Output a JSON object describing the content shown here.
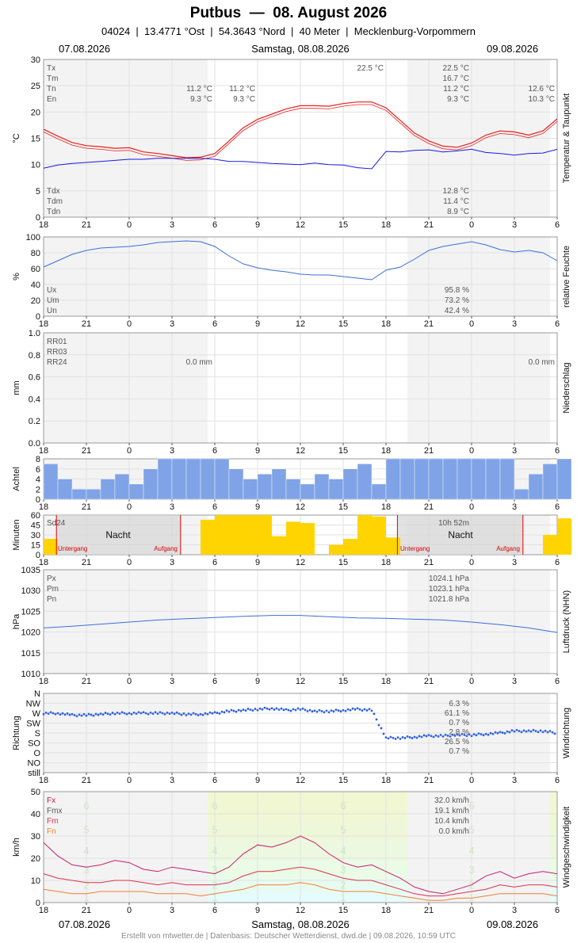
{
  "header": {
    "title": "Putbus  —  08. August 2026",
    "subtitle": "04024  |  13.4771 °Ost  |  54.3643 °Nord  |  40 Meter  |  Mecklenburg-Vorpommern",
    "date_left": "07.08.2026",
    "date_center": "Samstag, 08.08.2026",
    "date_right": "09.08.2026"
  },
  "footer": {
    "credit": "Erstellt von mtwetter.de | Datenbasis: Deutscher Wetterdienst, dwd.de | 09.08.2026, 10:59 UTC",
    "date_left": "07.08.2026",
    "date_center": "Samstag, 08.08.2026",
    "date_right": "09.08.2026"
  },
  "colors": {
    "temperature": "#e8201e",
    "dewpoint": "#1a1adf",
    "humidity": "#3a6fd8",
    "clouds": "#7fa3e6",
    "sun": "#ffd400",
    "pressure": "#3a6fd8",
    "wind_dir": "#2f5fe0",
    "gust": "#c51e6e",
    "wind_mean": "#d9324e",
    "wind_min": "#f08030",
    "night": "#d6d6d6",
    "grid": "#e2e2e2"
  },
  "x_ticks": [
    "18",
    "21",
    "0",
    "3",
    "6",
    "9",
    "12",
    "15",
    "18",
    "21",
    "0",
    "3",
    "6"
  ],
  "chart_data": [
    {
      "type": "line",
      "title": "Temperatur & Taupunkt",
      "ylabel": "°C",
      "ylim": [
        0,
        30
      ],
      "yticks": [
        "0",
        "5",
        "10",
        "15",
        "20",
        "25",
        "30"
      ],
      "x_unit": "hours since 07.08.2026 18:00",
      "series": [
        {
          "name": "Temperatur",
          "x": [
            0,
            1,
            2,
            3,
            4,
            5,
            6,
            7,
            8,
            9,
            10,
            11,
            12,
            13,
            14,
            15,
            16,
            17,
            18,
            19,
            20,
            21,
            22,
            23,
            24,
            25,
            26,
            27,
            28,
            29,
            30,
            31,
            32,
            33,
            34,
            35,
            36
          ],
          "values": [
            16.7,
            15.4,
            14.2,
            13.6,
            13.4,
            13.1,
            13.2,
            12.4,
            12.1,
            11.7,
            11.3,
            11.4,
            12.1,
            14.5,
            17.0,
            18.6,
            19.6,
            20.6,
            21.2,
            21.2,
            21.1,
            21.6,
            21.9,
            21.9,
            20.8,
            18.4,
            16.0,
            14.5,
            13.5,
            13.3,
            14.1,
            15.6,
            16.4,
            16.2,
            15.6,
            16.4,
            18.7
          ]
        },
        {
          "name": "Taupunkt",
          "x": [
            0,
            1,
            2,
            3,
            4,
            5,
            6,
            7,
            8,
            9,
            10,
            11,
            12,
            13,
            14,
            15,
            16,
            17,
            18,
            19,
            20,
            21,
            22,
            23,
            24,
            25,
            26,
            27,
            28,
            29,
            30,
            31,
            32,
            33,
            34,
            35,
            36
          ],
          "values": [
            9.3,
            9.9,
            10.2,
            10.4,
            10.6,
            10.8,
            11.0,
            11.0,
            11.2,
            11.2,
            11.2,
            11.2,
            11.0,
            10.6,
            10.6,
            10.4,
            10.2,
            10.1,
            10.0,
            10.3,
            10.0,
            9.9,
            9.4,
            9.2,
            12.5,
            12.4,
            12.7,
            12.8,
            12.4,
            12.6,
            12.9,
            12.3,
            12.1,
            11.8,
            12.1,
            12.2,
            12.9
          ]
        }
      ],
      "annotations": [
        {
          "label": "Tx",
          "value": "22.5 °C"
        },
        {
          "label": "Tm",
          "value": "16.7 °C"
        },
        {
          "label": "Tn",
          "value": "11.2 °C"
        },
        {
          "label": "En",
          "value": "9.3 °C"
        },
        {
          "label": "Tdx",
          "value": "12.8 °C"
        },
        {
          "label": "Tdm",
          "value": "11.4 °C"
        },
        {
          "label": "Tdn",
          "value": "8.9 °C"
        }
      ],
      "extra_labels": {
        "tx_peak": "22.5 °C",
        "tn_prev": "11.2 °C",
        "en_prev": "9.3 °C",
        "tn_prev2": "11.2 °C",
        "en_prev2": "9.3 °C",
        "tn_next": "12.6 °C",
        "en_next": "10.3 °C"
      }
    },
    {
      "type": "line",
      "title": "relative Feuchte",
      "ylabel": "%",
      "ylim": [
        0,
        100
      ],
      "yticks": [
        "0",
        "20",
        "40",
        "60",
        "80",
        "100"
      ],
      "series": [
        {
          "name": "Feuchte",
          "x": [
            0,
            1,
            2,
            3,
            4,
            5,
            6,
            7,
            8,
            9,
            10,
            11,
            12,
            13,
            14,
            15,
            16,
            17,
            18,
            19,
            20,
            21,
            22,
            23,
            24,
            25,
            26,
            27,
            28,
            29,
            30,
            31,
            32,
            33,
            34,
            35,
            36
          ],
          "values": [
            62,
            70,
            78,
            83,
            86,
            87,
            88,
            90,
            93,
            94,
            95,
            94,
            88,
            76,
            66,
            61,
            58,
            56,
            53,
            52,
            52,
            50,
            48,
            46,
            58,
            62,
            72,
            83,
            88,
            91,
            94,
            90,
            84,
            81,
            83,
            80,
            70
          ]
        }
      ],
      "annotations": [
        {
          "label": "Ux",
          "value": "95.8 %"
        },
        {
          "label": "Um",
          "value": "73.2 %"
        },
        {
          "label": "Un",
          "value": "42.4 %"
        }
      ]
    },
    {
      "type": "bar",
      "title": "Niederschlag",
      "ylabel": "mm",
      "ylim": [
        0,
        1.0
      ],
      "yticks": [
        "0.0",
        "0.2",
        "0.4",
        "0.6",
        "0.8",
        "1.0"
      ],
      "values": [],
      "annotations": [
        {
          "label": "RR01"
        },
        {
          "label": "RR03"
        },
        {
          "label": "RR24",
          "value": "0.0 mm",
          "value2": "0.0 mm"
        }
      ]
    },
    {
      "type": "bar",
      "title": "Wolken",
      "ylabel": "Achtel",
      "ylim": [
        0,
        8
      ],
      "yticks": [
        "0",
        "2",
        "4",
        "6",
        "8"
      ],
      "x_unit": "hours since 07.08.2026 18:00",
      "x": [
        0,
        1,
        2,
        3,
        4,
        5,
        6,
        7,
        8,
        9,
        10,
        11,
        12,
        13,
        14,
        15,
        16,
        17,
        18,
        19,
        20,
        21,
        22,
        23,
        24,
        25,
        26,
        27,
        28,
        29,
        30,
        31,
        32,
        33,
        34,
        35,
        36
      ],
      "values": [
        7,
        4,
        2,
        2,
        4,
        5,
        3,
        6,
        8,
        8,
        8,
        8,
        8,
        6,
        4,
        5,
        6,
        4,
        3,
        5,
        4,
        6,
        7,
        3,
        8,
        8,
        8,
        8,
        8,
        8,
        8,
        8,
        8,
        2,
        5,
        7,
        8
      ]
    },
    {
      "type": "bar",
      "title": "Sonne",
      "ylabel": "Minuten",
      "ylim": [
        0,
        60
      ],
      "yticks": [
        "0",
        "15",
        "30",
        "45",
        "60"
      ],
      "x_unit": "hours since 07.08.2026 18:00",
      "x": [
        0,
        1,
        2,
        3,
        4,
        5,
        6,
        7,
        8,
        9,
        10,
        11,
        12,
        13,
        14,
        15,
        16,
        17,
        18,
        19,
        20,
        21,
        22,
        23,
        24,
        25,
        26,
        27,
        28,
        29,
        30,
        31,
        32,
        33,
        34,
        35,
        36
      ],
      "values": [
        24,
        0,
        0,
        0,
        0,
        0,
        0,
        0,
        0,
        0,
        0,
        53,
        60,
        60,
        60,
        60,
        28,
        50,
        48,
        0,
        15,
        24,
        60,
        58,
        26,
        0,
        0,
        0,
        0,
        0,
        0,
        0,
        0,
        0,
        0,
        30,
        55
      ],
      "annotations": [
        {
          "label": "Sd24"
        },
        {
          "label": "10h 52m"
        },
        {
          "label": "Nacht"
        },
        {
          "label": "Untergang"
        },
        {
          "label": "Aufgang"
        }
      ]
    },
    {
      "type": "line",
      "title": "Luftdruck (NHN)",
      "ylabel": "hPa",
      "ylim": [
        1010,
        1035
      ],
      "yticks": [
        "1010",
        "1015",
        "1020",
        "1025",
        "1030",
        "1035"
      ],
      "series": [
        {
          "name": "Luftdruck",
          "x": [
            0,
            2,
            4,
            6,
            8,
            10,
            12,
            14,
            16,
            18,
            20,
            22,
            24,
            26,
            28,
            30,
            32,
            34,
            36
          ],
          "values": [
            1021.0,
            1021.4,
            1021.9,
            1022.4,
            1022.9,
            1023.2,
            1023.5,
            1023.8,
            1024.0,
            1024.0,
            1023.7,
            1023.4,
            1023.3,
            1023.1,
            1022.9,
            1022.4,
            1021.8,
            1021.0,
            1019.9
          ]
        }
      ],
      "annotations": [
        {
          "label": "Px",
          "value": "1024.1 hPa"
        },
        {
          "label": "Pm",
          "value": "1023.1 hPa"
        },
        {
          "label": "Pn",
          "value": "1021.8 hPa"
        }
      ]
    },
    {
      "type": "scatter",
      "title": "Windrichtung",
      "ylabel": "Richtung",
      "yticks": [
        "still",
        "NO",
        "O",
        "SO",
        "S",
        "SW",
        "W",
        "NW",
        "N"
      ],
      "ylim": [
        0,
        8
      ],
      "x_unit": "hours since 07.08.2026 18:00",
      "series": [
        {
          "name": "Windrichtung",
          "x": [
            0,
            1,
            2,
            3,
            4,
            5,
            6,
            7,
            8,
            9,
            10,
            11,
            12,
            13,
            14,
            15,
            16,
            17,
            18,
            19,
            20,
            21,
            22,
            23,
            24,
            25,
            26,
            27,
            28,
            29,
            30,
            31,
            32,
            33,
            34,
            35,
            36
          ],
          "values": [
            6,
            6,
            5.8,
            5.8,
            5.9,
            6,
            6,
            6,
            6,
            6,
            5.9,
            5.9,
            6,
            6.2,
            6.3,
            6.4,
            6.5,
            6.3,
            6.4,
            6.2,
            6.2,
            6.3,
            6.4,
            6.3,
            3.5,
            3.5,
            3.6,
            3.7,
            3.7,
            3.8,
            3.8,
            3.9,
            4,
            4.2,
            4.2,
            4.2,
            4
          ]
        }
      ],
      "annotations": [
        {
          "label": "N",
          "value": "6.3 %"
        },
        {
          "label": "NW",
          "value": "61.1 %"
        },
        {
          "label": "W",
          "value": "0.7 %"
        },
        {
          "label": "SW",
          "value": "2.8 %"
        },
        {
          "label": "S",
          "value": "26.5 %"
        },
        {
          "label": "SO",
          "value": "0.7 %"
        }
      ]
    },
    {
      "type": "line",
      "title": "Windgeschwindigkeit",
      "ylabel": "km/h",
      "ylim": [
        0,
        50
      ],
      "yticks": [
        "0",
        "10",
        "20",
        "30",
        "40",
        "50"
      ],
      "x_unit": "hours since 07.08.2026 18:00",
      "series": [
        {
          "name": "Fx",
          "x": [
            0,
            1,
            2,
            3,
            4,
            5,
            6,
            7,
            8,
            9,
            10,
            11,
            12,
            13,
            14,
            15,
            16,
            17,
            18,
            19,
            20,
            21,
            22,
            23,
            24,
            25,
            26,
            27,
            28,
            29,
            30,
            31,
            32,
            33,
            34,
            35,
            36
          ],
          "values": [
            27,
            21,
            17,
            16,
            17,
            19,
            18,
            15,
            14,
            16,
            15,
            14,
            13,
            16,
            22,
            26,
            25,
            27,
            30,
            27,
            22,
            18,
            16,
            17,
            14,
            11,
            7,
            5,
            4,
            6,
            8,
            12,
            14,
            11,
            13,
            14,
            13
          ]
        },
        {
          "name": "Fm",
          "x": [
            0,
            1,
            2,
            3,
            4,
            5,
            6,
            7,
            8,
            9,
            10,
            11,
            12,
            13,
            14,
            15,
            16,
            17,
            18,
            19,
            20,
            21,
            22,
            23,
            24,
            25,
            26,
            27,
            28,
            29,
            30,
            31,
            32,
            33,
            34,
            35,
            36
          ],
          "values": [
            13,
            11,
            10,
            9,
            9,
            10,
            10,
            9,
            8,
            9,
            8,
            8,
            8,
            9,
            12,
            14,
            14,
            15,
            16,
            15,
            13,
            11,
            10,
            10,
            8,
            6,
            4,
            3,
            3,
            4,
            5,
            6,
            8,
            7,
            8,
            8,
            7
          ]
        },
        {
          "name": "Fn",
          "x": [
            0,
            1,
            2,
            3,
            4,
            5,
            6,
            7,
            8,
            9,
            10,
            11,
            12,
            13,
            14,
            15,
            16,
            17,
            18,
            19,
            20,
            21,
            22,
            23,
            24,
            25,
            26,
            27,
            28,
            29,
            30,
            31,
            32,
            33,
            34,
            35,
            36
          ],
          "values": [
            6,
            5,
            4,
            4,
            5,
            5,
            5,
            5,
            4,
            4,
            4,
            3,
            4,
            5,
            6,
            8,
            8,
            8,
            9,
            8,
            6,
            5,
            5,
            5,
            4,
            3,
            2,
            1,
            1,
            2,
            2,
            3,
            4,
            4,
            4,
            4,
            3
          ]
        }
      ],
      "annotations": [
        {
          "label": "Fx",
          "value": "32.0 km/h"
        },
        {
          "label": "Fmx",
          "value": "19.1 km/h"
        },
        {
          "label": "Fm",
          "value": "10.4 km/h"
        },
        {
          "label": "Fn",
          "value": "0.0 km/h"
        }
      ],
      "beaufort_labels": [
        "1",
        "2",
        "3",
        "4",
        "5",
        "6"
      ]
    }
  ]
}
